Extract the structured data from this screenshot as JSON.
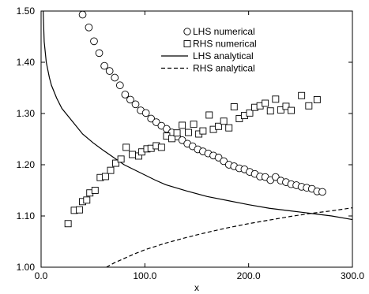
{
  "chart_data": {
    "type": "scatter",
    "title": "",
    "xlabel": "x",
    "ylabel": "",
    "xlim": [
      0,
      300
    ],
    "ylim": [
      1.0,
      1.5
    ],
    "x_ticks": [
      0,
      100,
      200,
      300
    ],
    "x_tick_labels": [
      "0.0",
      "100.0",
      "200.0",
      "300.0"
    ],
    "y_ticks": [
      1.0,
      1.1,
      1.2,
      1.3,
      1.4,
      1.5
    ],
    "y_tick_labels": [
      "1.00",
      "1.10",
      "1.20",
      "1.30",
      "1.40",
      "1.50"
    ],
    "grid": false,
    "legend_position": "top-right",
    "series": [
      {
        "name": "LHS numerical",
        "type": "scatter",
        "marker": "circle",
        "points": [
          [
            40,
            1.493
          ],
          [
            46,
            1.468
          ],
          [
            51,
            1.441
          ],
          [
            56,
            1.418
          ],
          [
            61,
            1.393
          ],
          [
            66,
            1.383
          ],
          [
            71,
            1.37
          ],
          [
            76,
            1.355
          ],
          [
            81,
            1.337
          ],
          [
            86,
            1.327
          ],
          [
            91,
            1.318
          ],
          [
            96,
            1.306
          ],
          [
            101,
            1.301
          ],
          [
            106,
            1.29
          ],
          [
            111,
            1.283
          ],
          [
            116,
            1.276
          ],
          [
            121,
            1.27
          ],
          [
            126,
            1.263
          ],
          [
            131,
            1.255
          ],
          [
            136,
            1.248
          ],
          [
            141,
            1.241
          ],
          [
            146,
            1.236
          ],
          [
            151,
            1.23
          ],
          [
            156,
            1.226
          ],
          [
            161,
            1.222
          ],
          [
            166,
            1.218
          ],
          [
            171,
            1.214
          ],
          [
            176,
            1.207
          ],
          [
            181,
            1.2
          ],
          [
            186,
            1.197
          ],
          [
            191,
            1.193
          ],
          [
            196,
            1.191
          ],
          [
            201,
            1.186
          ],
          [
            206,
            1.182
          ],
          [
            211,
            1.177
          ],
          [
            216,
            1.176
          ],
          [
            221,
            1.17
          ],
          [
            226,
            1.176
          ],
          [
            231,
            1.169
          ],
          [
            236,
            1.166
          ],
          [
            241,
            1.162
          ],
          [
            246,
            1.16
          ],
          [
            251,
            1.157
          ],
          [
            256,
            1.155
          ],
          [
            261,
            1.153
          ],
          [
            266,
            1.148
          ],
          [
            271,
            1.147
          ]
        ]
      },
      {
        "name": "RHS numerical",
        "type": "scatter",
        "marker": "square",
        "points": [
          [
            26,
            1.085
          ],
          [
            32,
            1.111
          ],
          [
            37,
            1.112
          ],
          [
            40,
            1.128
          ],
          [
            44,
            1.131
          ],
          [
            47,
            1.145
          ],
          [
            52,
            1.15
          ],
          [
            57,
            1.175
          ],
          [
            62,
            1.177
          ],
          [
            67,
            1.189
          ],
          [
            72,
            1.203
          ],
          [
            77,
            1.211
          ],
          [
            82,
            1.234
          ],
          [
            88,
            1.22
          ],
          [
            94,
            1.217
          ],
          [
            97,
            1.225
          ],
          [
            102,
            1.231
          ],
          [
            106,
            1.232
          ],
          [
            111,
            1.237
          ],
          [
            116,
            1.234
          ],
          [
            121,
            1.256
          ],
          [
            126,
            1.251
          ],
          [
            131,
            1.262
          ],
          [
            136,
            1.277
          ],
          [
            142,
            1.263
          ],
          [
            147,
            1.279
          ],
          [
            152,
            1.26
          ],
          [
            156,
            1.266
          ],
          [
            162,
            1.297
          ],
          [
            166,
            1.269
          ],
          [
            171,
            1.275
          ],
          [
            176,
            1.285
          ],
          [
            181,
            1.272
          ],
          [
            186,
            1.313
          ],
          [
            191,
            1.29
          ],
          [
            196,
            1.296
          ],
          [
            201,
            1.301
          ],
          [
            206,
            1.312
          ],
          [
            211,
            1.315
          ],
          [
            216,
            1.32
          ],
          [
            221,
            1.305
          ],
          [
            226,
            1.328
          ],
          [
            231,
            1.307
          ],
          [
            236,
            1.314
          ],
          [
            241,
            1.306
          ],
          [
            251,
            1.335
          ],
          [
            258,
            1.315
          ],
          [
            266,
            1.327
          ]
        ]
      },
      {
        "name": "LHS analytical",
        "type": "line",
        "dash": "solid",
        "points": [
          [
            2,
            1.5
          ],
          [
            3,
            1.44
          ],
          [
            5,
            1.4
          ],
          [
            8,
            1.37
          ],
          [
            10,
            1.355
          ],
          [
            15,
            1.33
          ],
          [
            20,
            1.31
          ],
          [
            30,
            1.285
          ],
          [
            40,
            1.26
          ],
          [
            50,
            1.243
          ],
          [
            60,
            1.228
          ],
          [
            70,
            1.214
          ],
          [
            80,
            1.2
          ],
          [
            90,
            1.19
          ],
          [
            100,
            1.18
          ],
          [
            110,
            1.17
          ],
          [
            120,
            1.161
          ],
          [
            140,
            1.149
          ],
          [
            160,
            1.138
          ],
          [
            180,
            1.13
          ],
          [
            200,
            1.122
          ],
          [
            220,
            1.115
          ],
          [
            240,
            1.11
          ],
          [
            260,
            1.105
          ],
          [
            280,
            1.1
          ],
          [
            300,
            1.093
          ]
        ]
      },
      {
        "name": "RHS analytical",
        "type": "line",
        "dash": "dashed",
        "points": [
          [
            63,
            1.0
          ],
          [
            70,
            1.008
          ],
          [
            80,
            1.017
          ],
          [
            90,
            1.026
          ],
          [
            100,
            1.034
          ],
          [
            120,
            1.047
          ],
          [
            140,
            1.058
          ],
          [
            160,
            1.068
          ],
          [
            180,
            1.077
          ],
          [
            200,
            1.085
          ],
          [
            220,
            1.092
          ],
          [
            240,
            1.099
          ],
          [
            260,
            1.105
          ],
          [
            280,
            1.11
          ],
          [
            300,
            1.116
          ]
        ]
      }
    ]
  }
}
